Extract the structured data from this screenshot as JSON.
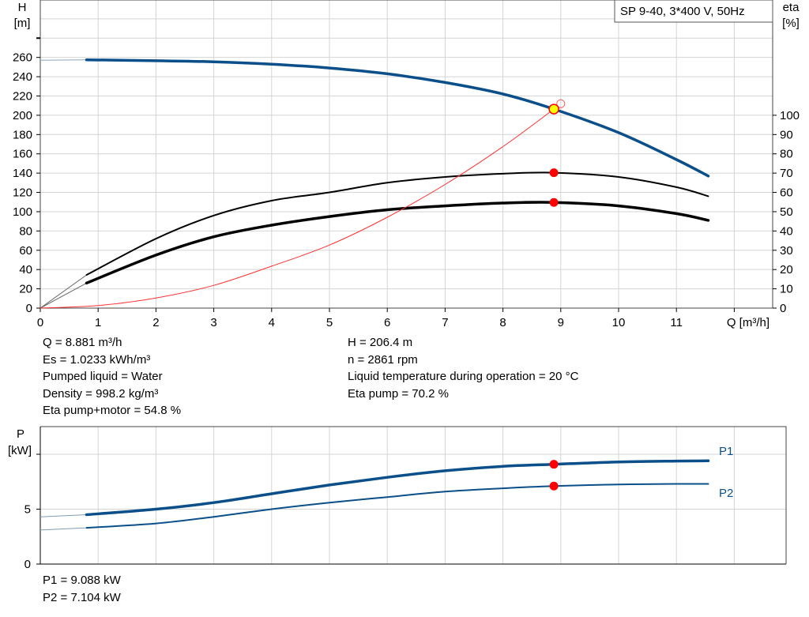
{
  "chart_data": [
    {
      "type": "line",
      "title": "SP 9-40, 3*400 V, 50Hz",
      "xlabel": "Q [m³/h]",
      "ylabel_left": [
        "H",
        "[m]"
      ],
      "ylabel_right": [
        "eta",
        "[%]"
      ],
      "xlim": [
        0,
        12.6
      ],
      "ylim_left": [
        0,
        320
      ],
      "ylim_right": [
        0,
        160
      ],
      "xticks": [
        "0",
        "1",
        "2",
        "3",
        "4",
        "5",
        "6",
        "7",
        "8",
        "9",
        "10",
        "11"
      ],
      "yticks_left": [
        "0",
        "20",
        "40",
        "60",
        "80",
        "100",
        "120",
        "140",
        "160",
        "180",
        "200",
        "220",
        "240",
        "260"
      ],
      "yticks_right": [
        "0",
        "10",
        "20",
        "30",
        "40",
        "50",
        "60",
        "70",
        "80",
        "90",
        "100"
      ],
      "grid": true,
      "series": [
        {
          "key": "H",
          "axis": "left",
          "color": "#0b4f8a",
          "x": [
            0,
            0.8,
            2,
            3,
            4,
            5,
            6,
            7,
            8,
            8.881,
            10,
            11,
            11.55
          ],
          "y": [
            257,
            257.5,
            256.5,
            255.5,
            253,
            249,
            243,
            234,
            222,
            206.4,
            182,
            154,
            137
          ]
        },
        {
          "key": "eta_pump",
          "axis": "right",
          "color": "#000000",
          "x": [
            0,
            0.8,
            2,
            3,
            4,
            5,
            6,
            7,
            8,
            8.881,
            10,
            11,
            11.55
          ],
          "y": [
            0,
            17.2,
            36,
            48,
            55.7,
            60,
            65,
            68,
            69.7,
            70.2,
            68,
            62.7,
            58
          ]
        },
        {
          "key": "eta_pump_motor",
          "axis": "right",
          "color": "#000000",
          "x": [
            0,
            0.8,
            2,
            3,
            4,
            5,
            6,
            7,
            8,
            8.881,
            10,
            11,
            11.55
          ],
          "y": [
            0,
            13,
            27.5,
            37,
            43,
            47.5,
            51,
            53,
            54.5,
            54.8,
            53,
            49,
            45.5
          ]
        },
        {
          "key": "system_curve",
          "axis": "left",
          "color": "#ff3030",
          "x": [
            0,
            1,
            2,
            3,
            4,
            5,
            6,
            7,
            8,
            8.881,
            9.0
          ],
          "y": [
            0,
            2.6,
            10.5,
            23.6,
            43.5,
            65.4,
            94.2,
            128.2,
            167.5,
            206.4,
            212
          ]
        }
      ],
      "duty_point": {
        "Q": 8.881,
        "H": 206.4,
        "eta_pump": 70.2,
        "eta_pump_motor": 54.8,
        "marker_color": "#ffff00"
      }
    },
    {
      "type": "line",
      "xlabel": "",
      "ylabel_left": [
        "P",
        "[kW]"
      ],
      "xlim": [
        0,
        12.6
      ],
      "ylim": [
        0,
        12.5
      ],
      "yticks": [
        "0",
        "5"
      ],
      "grid": true,
      "series": [
        {
          "name": "P1",
          "color": "#0b4f8a",
          "x": [
            0,
            0.8,
            2,
            3,
            4,
            5,
            6,
            7,
            8,
            8.881,
            10,
            11,
            11.55
          ],
          "y": [
            4.3,
            4.5,
            5.0,
            5.6,
            6.4,
            7.2,
            7.9,
            8.5,
            8.9,
            9.088,
            9.3,
            9.38,
            9.4
          ]
        },
        {
          "name": "P2",
          "color": "#0b4f8a",
          "x": [
            0,
            0.8,
            2,
            3,
            4,
            5,
            6,
            7,
            8,
            8.881,
            10,
            11,
            11.55
          ],
          "y": [
            3.1,
            3.3,
            3.7,
            4.3,
            5.0,
            5.6,
            6.1,
            6.6,
            6.9,
            7.104,
            7.25,
            7.3,
            7.3
          ]
        }
      ],
      "duty_point": {
        "Q": 8.881,
        "P1": 9.088,
        "P2": 7.104
      }
    }
  ],
  "info_left": [
    "Q = 8.881 m³/h",
    "Es = 1.0233 kWh/m³",
    "Pumped liquid = Water",
    "Density = 998.2 kg/m³",
    "Eta pump+motor = 54.8 %"
  ],
  "info_right": [
    "H = 206.4 m",
    "n = 2861 rpm",
    "Liquid temperature during operation = 20 °C",
    "Eta pump = 70.2 %"
  ],
  "power_info": [
    "P1 = 9.088 kW",
    "P2 = 7.104 kW"
  ],
  "colors": {
    "curve_blue": "#0b4f8a",
    "duty_marker": "#ff0000",
    "grid": "#d4d4d4"
  }
}
